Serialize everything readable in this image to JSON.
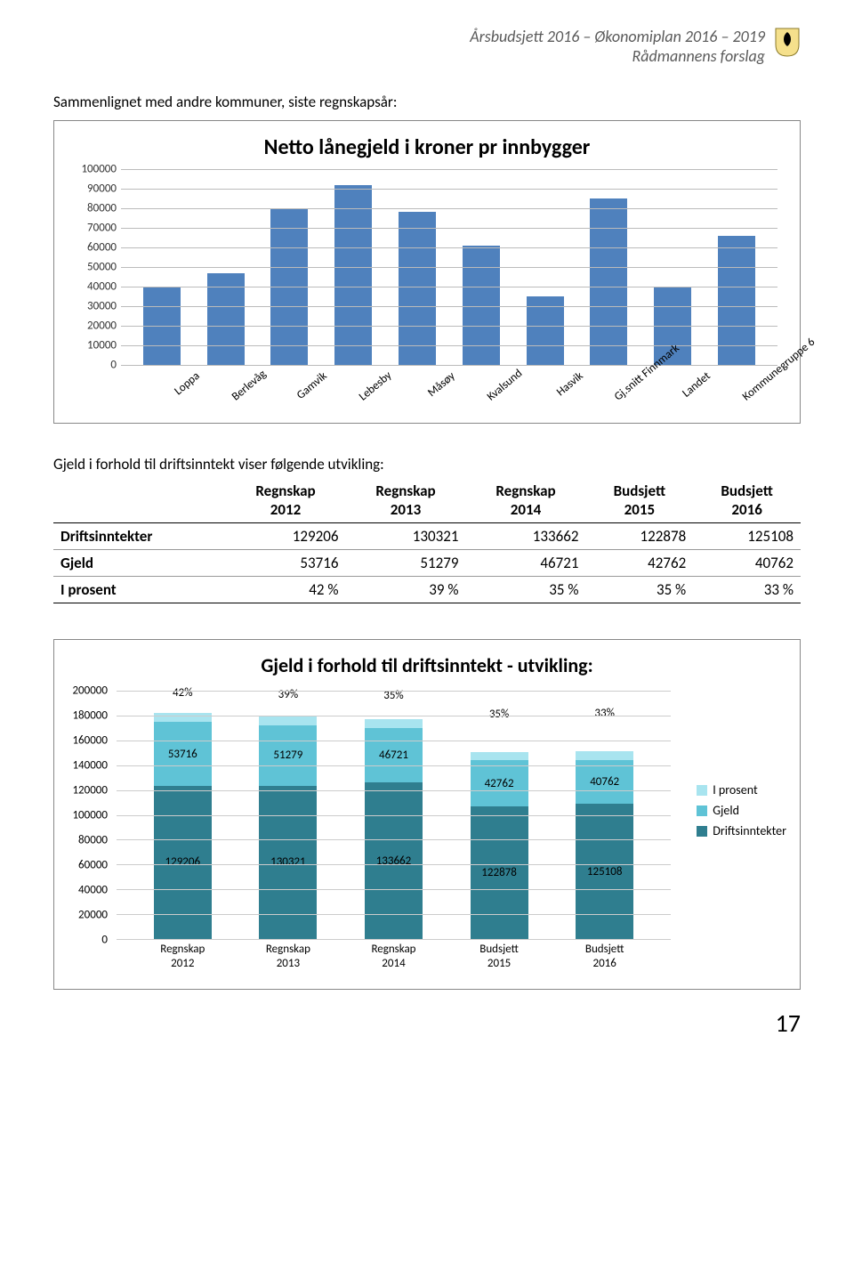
{
  "header": {
    "line1": "Årsbudsjett 2016 – Økonomiplan 2016 – 2019",
    "line2": "Rådmannens forslag"
  },
  "section1_title": "Sammenlignet med andre kommuner, siste regnskapsår:",
  "chart1": {
    "title": "Netto lånegjeld i kroner pr innbygger",
    "ymax": 100000,
    "ystep": 10000,
    "bar_color": "#4f81bd",
    "grid_color": "#bbbbbb",
    "categories": [
      "Loppa",
      "Berlevåg",
      "Gamvik",
      "Lebesby",
      "Måsøy",
      "Kvalsund",
      "Hasvik",
      "Gj.snitt Finnmark",
      "Landet",
      "Kommunegruppe 6"
    ],
    "values": [
      40000,
      47000,
      80000,
      92000,
      78000,
      61000,
      35000,
      85000,
      40000,
      66000
    ]
  },
  "table_intro": "Gjeld i forhold til driftsinntekt viser følgende utvikling:",
  "table": {
    "columns": [
      "",
      "Regnskap 2012",
      "Regnskap 2013",
      "Regnskap 2014",
      "Budsjett 2015",
      "Budsjett 2016"
    ],
    "rows": [
      [
        "Driftsinntekter",
        "129206",
        "130321",
        "133662",
        "122878",
        "125108"
      ],
      [
        "Gjeld",
        "53716",
        "51279",
        "46721",
        "42762",
        "40762"
      ],
      [
        "I prosent",
        "42 %",
        "39 %",
        "35 %",
        "35 %",
        "33 %"
      ]
    ]
  },
  "chart2": {
    "title": "Gjeld i forhold til driftsinntekt - utvikling:",
    "ymax": 200000,
    "ystep": 20000,
    "colors": {
      "driftsinntekter": "#2f7e8f",
      "gjeld": "#5fc3d6",
      "prosent": "#a8e4ef"
    },
    "categories": [
      "Regnskap 2012",
      "Regnskap 2013",
      "Regnskap 2014",
      "Budsjett 2015",
      "Budsjett 2016"
    ],
    "driftsinntekter": [
      129206,
      130321,
      133662,
      122878,
      125108
    ],
    "gjeld": [
      53716,
      51279,
      46721,
      42762,
      40762
    ],
    "prosent_label": [
      "42%",
      "39%",
      "35%",
      "35%",
      "33%"
    ],
    "legend": [
      "I prosent",
      "Gjeld",
      "Driftsinntekter"
    ]
  },
  "page_number": "17"
}
